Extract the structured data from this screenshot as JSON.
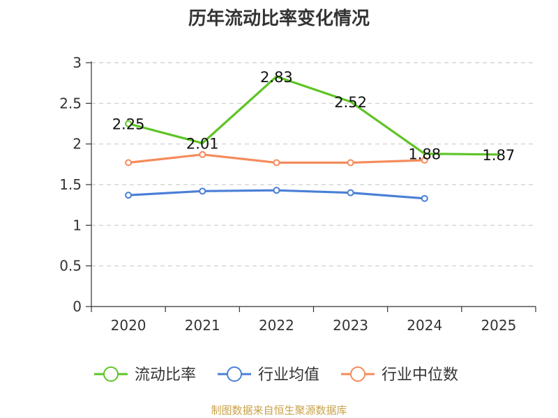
{
  "title": "历年流动比率变化情况",
  "source": "制图数据来自恒生聚源数据库",
  "chart_data": {
    "type": "line",
    "categories": [
      "2020",
      "2021",
      "2022",
      "2023",
      "2024",
      "2025"
    ],
    "ylim": [
      0,
      3
    ],
    "yticks": [
      "0",
      "0.5",
      "1",
      "1.5",
      "2",
      "2.5",
      "3"
    ],
    "ytick_values": [
      0,
      0.5,
      1,
      1.5,
      2,
      2.5,
      3
    ],
    "grid": "horizontal-dashed",
    "legend_position": "bottom",
    "series": [
      {
        "name": "流动比率",
        "color": "#5ec425",
        "values": [
          2.25,
          2.01,
          2.83,
          2.52,
          1.88,
          1.87
        ],
        "labels": [
          "2.25",
          "2.01",
          "2.83",
          "2.52",
          "1.88",
          "1.87"
        ],
        "markers": "first-only"
      },
      {
        "name": "行业均值",
        "color": "#4a7fd6",
        "values": [
          1.37,
          1.42,
          1.43,
          1.4,
          1.33,
          null
        ],
        "markers": "all"
      },
      {
        "name": "行业中位数",
        "color": "#f58b5b",
        "values": [
          1.77,
          1.87,
          1.77,
          1.77,
          1.8,
          null
        ],
        "markers": "all"
      }
    ]
  }
}
